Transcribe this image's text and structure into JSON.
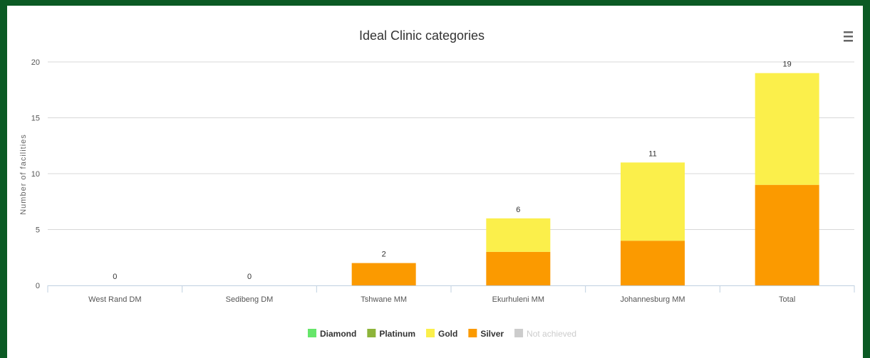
{
  "chart_data": {
    "type": "bar",
    "stacked": true,
    "title": "Ideal Clinic categories",
    "ylabel": "Number of facilities",
    "xlabel": "",
    "ylim": [
      0,
      20
    ],
    "yticks": [
      0,
      5,
      10,
      15,
      20
    ],
    "categories": [
      "West Rand DM",
      "Sedibeng DM",
      "Tshwane MM",
      "Ekurhuleni MM",
      "Johannesburg MM",
      "Total"
    ],
    "series": [
      {
        "name": "Diamond",
        "color": "#66e66a",
        "values": [
          0,
          0,
          0,
          0,
          0,
          0
        ]
      },
      {
        "name": "Platinum",
        "color": "#8db43a",
        "values": [
          0,
          0,
          0,
          0,
          0,
          0
        ]
      },
      {
        "name": "Gold",
        "color": "#fbef4b",
        "values": [
          0,
          0,
          0,
          3,
          7,
          10
        ]
      },
      {
        "name": "Silver",
        "color": "#fb9a00",
        "values": [
          0,
          0,
          2,
          3,
          4,
          9
        ]
      },
      {
        "name": "Not achieved",
        "color": "#cccccc",
        "values": [
          0,
          0,
          0,
          0,
          0,
          0
        ],
        "legend_dimmed": true
      }
    ],
    "totals": [
      0,
      0,
      2,
      6,
      11,
      19
    ],
    "grid": true,
    "legend_position": "bottom-center"
  },
  "menu_icon": "hamburger-menu-icon",
  "frame_color": "#0b5a24"
}
